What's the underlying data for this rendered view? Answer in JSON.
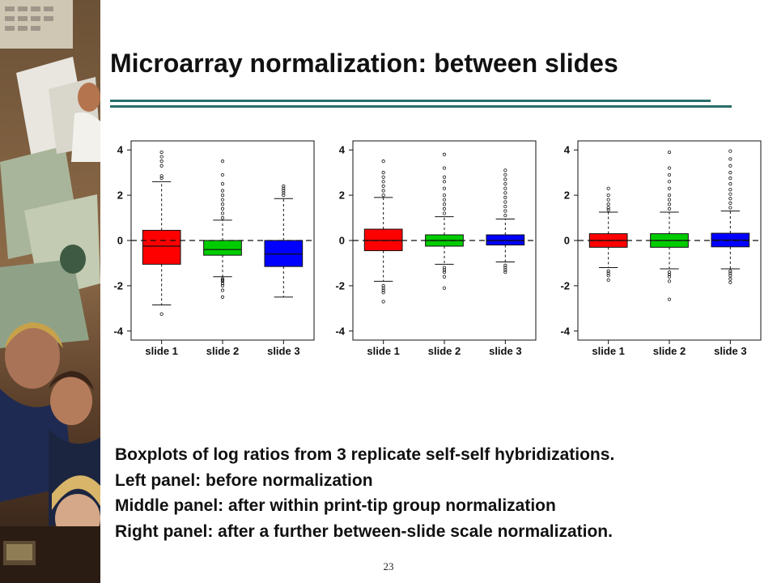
{
  "slide": {
    "title": "Microarray normalization: between slides",
    "caption": [
      "Boxplots of log ratios from 3 replicate self-self hybridizations.",
      "Left panel: before normalization",
      "Middle panel: after within print-tip group normalization",
      "Right panel: after a further between-slide scale normalization."
    ],
    "page_number": "23"
  },
  "colors": {
    "slide_1": "#ff0000",
    "slide_2": "#00cc00",
    "slide_3": "#0000ff",
    "title_rule": "#2a6f6a"
  },
  "chart_data": [
    {
      "type": "boxplot",
      "categories": [
        "slide 1",
        "slide 2",
        "slide 3"
      ],
      "yticks": [
        "4",
        "2",
        "0",
        "-2",
        "-4"
      ],
      "ylim": [
        -4.4,
        4.4
      ],
      "reference_line": 0,
      "boxes": [
        {
          "q1": -1.05,
          "median": -0.25,
          "q3": 0.45,
          "whisker_low": -2.85,
          "whisker_high": 2.6,
          "outliers": [
            -3.25,
            2.75,
            2.85,
            3.3,
            3.5,
            3.7,
            3.9
          ]
        },
        {
          "q1": -0.65,
          "median": -0.4,
          "q3": 0.0,
          "whisker_low": -1.6,
          "whisker_high": 0.9,
          "outliers": [
            -2.5,
            -2.2,
            -2.0,
            -1.9,
            -1.8,
            -1.75,
            -1.7,
            1.0,
            1.2,
            1.4,
            1.6,
            1.8,
            2.0,
            2.2,
            2.5,
            2.9,
            3.5
          ]
        },
        {
          "q1": -1.15,
          "median": -0.6,
          "q3": 0.0,
          "whisker_low": -2.5,
          "whisker_high": 1.85,
          "outliers": [
            2.0,
            2.1,
            2.2,
            2.3,
            2.4
          ]
        }
      ]
    },
    {
      "type": "boxplot",
      "categories": [
        "slide 1",
        "slide 2",
        "slide 3"
      ],
      "yticks": [
        "4",
        "2",
        "0",
        "-2",
        "-4"
      ],
      "ylim": [
        -4.4,
        4.4
      ],
      "reference_line": 0,
      "boxes": [
        {
          "q1": -0.45,
          "median": 0.0,
          "q3": 0.5,
          "whisker_low": -1.8,
          "whisker_high": 1.9,
          "outliers": [
            -2.7,
            -2.3,
            -2.2,
            -2.1,
            -2.0,
            2.0,
            2.2,
            2.4,
            2.6,
            2.8,
            3.0,
            3.5
          ]
        },
        {
          "q1": -0.25,
          "median": 0.0,
          "q3": 0.25,
          "whisker_low": -1.05,
          "whisker_high": 1.05,
          "outliers": [
            -2.1,
            -1.6,
            -1.4,
            -1.3,
            -1.2,
            1.2,
            1.4,
            1.6,
            1.8,
            2.0,
            2.3,
            2.6,
            2.8,
            3.2,
            3.8
          ]
        },
        {
          "q1": -0.2,
          "median": 0.0,
          "q3": 0.25,
          "whisker_low": -0.95,
          "whisker_high": 0.95,
          "outliers": [
            -1.4,
            -1.3,
            -1.2,
            -1.1,
            1.1,
            1.3,
            1.5,
            1.7,
            1.9,
            2.1,
            2.3,
            2.5,
            2.7,
            2.9,
            3.1
          ]
        }
      ]
    },
    {
      "type": "boxplot",
      "categories": [
        "slide 1",
        "slide 2",
        "slide 3"
      ],
      "yticks": [
        "4",
        "2",
        "0",
        "-2",
        "-4"
      ],
      "ylim": [
        -4.4,
        4.4
      ],
      "reference_line": 0,
      "boxes": [
        {
          "q1": -0.3,
          "median": 0.0,
          "q3": 0.3,
          "whisker_low": -1.2,
          "whisker_high": 1.25,
          "outliers": [
            -1.75,
            -1.55,
            -1.45,
            -1.35,
            1.35,
            1.45,
            1.6,
            1.8,
            2.0,
            2.3
          ]
        },
        {
          "q1": -0.3,
          "median": 0.0,
          "q3": 0.3,
          "whisker_low": -1.25,
          "whisker_high": 1.25,
          "outliers": [
            -2.6,
            -1.8,
            -1.6,
            -1.5,
            -1.4,
            1.4,
            1.6,
            1.8,
            2.0,
            2.3,
            2.6,
            2.9,
            3.2,
            3.9
          ]
        },
        {
          "q1": -0.28,
          "median": 0.02,
          "q3": 0.32,
          "whisker_low": -1.25,
          "whisker_high": 1.3,
          "outliers": [
            -1.85,
            -1.7,
            -1.55,
            -1.45,
            -1.35,
            1.45,
            1.65,
            1.85,
            2.05,
            2.25,
            2.5,
            2.75,
            3.0,
            3.3,
            3.6,
            3.95
          ]
        }
      ]
    }
  ]
}
